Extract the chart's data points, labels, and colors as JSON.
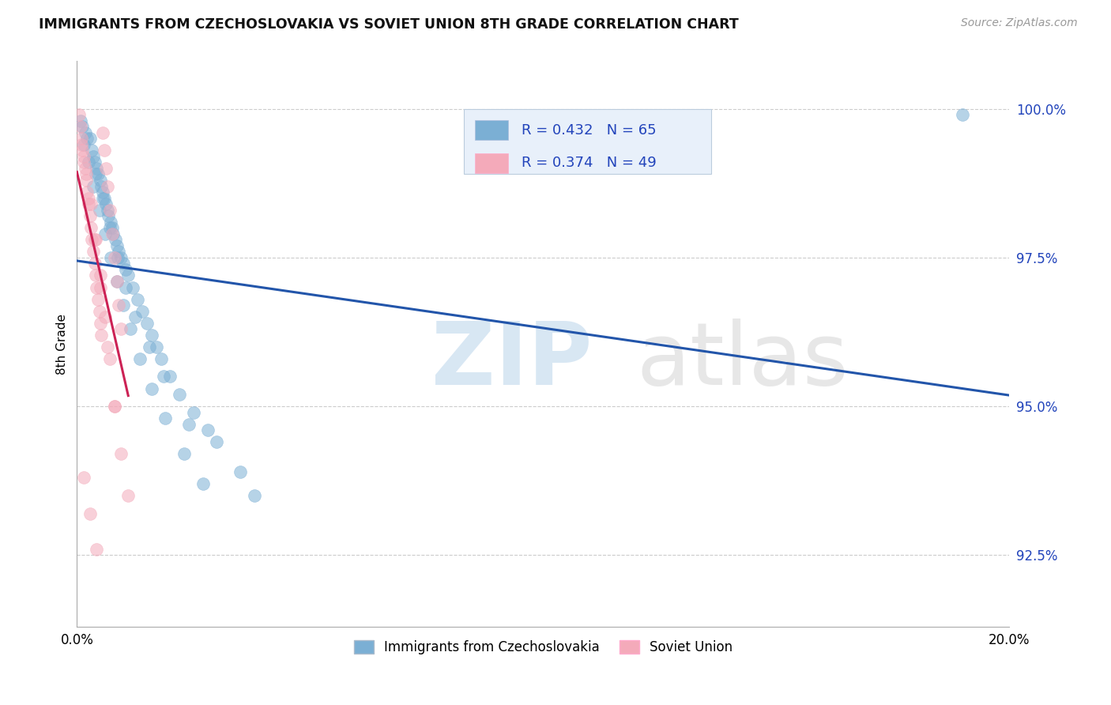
{
  "title": "IMMIGRANTS FROM CZECHOSLOVAKIA VS SOVIET UNION 8TH GRADE CORRELATION CHART",
  "source": "Source: ZipAtlas.com",
  "ylabel": "8th Grade",
  "yticks": [
    92.5,
    95.0,
    97.5,
    100.0
  ],
  "ytick_labels": [
    "92.5%",
    "95.0%",
    "97.5%",
    "100.0%"
  ],
  "xmin": 0.0,
  "xmax": 20.0,
  "ymin": 91.3,
  "ymax": 100.8,
  "blue_R": 0.432,
  "blue_N": 65,
  "pink_R": 0.374,
  "pink_N": 49,
  "blue_color": "#7BAFD4",
  "pink_color": "#F4AABA",
  "blue_line_color": "#2255AA",
  "pink_line_color": "#CC2255",
  "legend_blue_label": "Immigrants from Czechoslovakia",
  "legend_pink_label": "Soviet Union",
  "blue_x": [
    0.08,
    0.12,
    0.18,
    0.22,
    0.28,
    0.32,
    0.35,
    0.38,
    0.42,
    0.45,
    0.5,
    0.52,
    0.55,
    0.58,
    0.62,
    0.65,
    0.68,
    0.72,
    0.75,
    0.78,
    0.82,
    0.85,
    0.9,
    0.95,
    1.0,
    1.05,
    1.1,
    1.2,
    1.3,
    1.4,
    1.5,
    1.6,
    1.7,
    1.8,
    2.0,
    2.2,
    2.5,
    2.8,
    3.0,
    3.5,
    0.15,
    0.25,
    0.35,
    0.48,
    0.6,
    0.72,
    0.85,
    1.0,
    1.15,
    1.35,
    1.6,
    1.9,
    2.3,
    2.7,
    0.4,
    0.55,
    0.7,
    0.88,
    1.05,
    1.25,
    1.55,
    1.85,
    2.4,
    3.8,
    19.0
  ],
  "blue_y": [
    99.8,
    99.7,
    99.6,
    99.5,
    99.5,
    99.3,
    99.2,
    99.1,
    99.0,
    98.9,
    98.8,
    98.7,
    98.6,
    98.5,
    98.4,
    98.3,
    98.2,
    98.1,
    98.0,
    97.9,
    97.8,
    97.7,
    97.6,
    97.5,
    97.4,
    97.3,
    97.2,
    97.0,
    96.8,
    96.6,
    96.4,
    96.2,
    96.0,
    95.8,
    95.5,
    95.2,
    94.9,
    94.6,
    94.4,
    93.9,
    99.4,
    99.1,
    98.7,
    98.3,
    97.9,
    97.5,
    97.1,
    96.7,
    96.3,
    95.8,
    95.3,
    94.8,
    94.2,
    93.7,
    98.9,
    98.5,
    98.0,
    97.5,
    97.0,
    96.5,
    96.0,
    95.5,
    94.7,
    93.5,
    99.9
  ],
  "pink_x": [
    0.05,
    0.08,
    0.1,
    0.12,
    0.15,
    0.18,
    0.2,
    0.22,
    0.25,
    0.28,
    0.3,
    0.32,
    0.35,
    0.38,
    0.4,
    0.42,
    0.45,
    0.48,
    0.5,
    0.52,
    0.55,
    0.58,
    0.62,
    0.65,
    0.7,
    0.75,
    0.8,
    0.85,
    0.9,
    0.95,
    0.1,
    0.2,
    0.3,
    0.4,
    0.5,
    0.6,
    0.7,
    0.8,
    0.95,
    1.1,
    0.15,
    0.25,
    0.38,
    0.5,
    0.65,
    0.8,
    0.15,
    0.28,
    0.42
  ],
  "pink_y": [
    99.9,
    99.7,
    99.5,
    99.3,
    99.2,
    99.0,
    98.8,
    98.6,
    98.4,
    98.2,
    98.0,
    97.8,
    97.6,
    97.4,
    97.2,
    97.0,
    96.8,
    96.6,
    96.4,
    96.2,
    99.6,
    99.3,
    99.0,
    98.7,
    98.3,
    97.9,
    97.5,
    97.1,
    96.7,
    96.3,
    99.4,
    98.9,
    98.4,
    97.8,
    97.2,
    96.5,
    95.8,
    95.0,
    94.2,
    93.5,
    99.1,
    98.5,
    97.8,
    97.0,
    96.0,
    95.0,
    93.8,
    93.2,
    92.6
  ]
}
